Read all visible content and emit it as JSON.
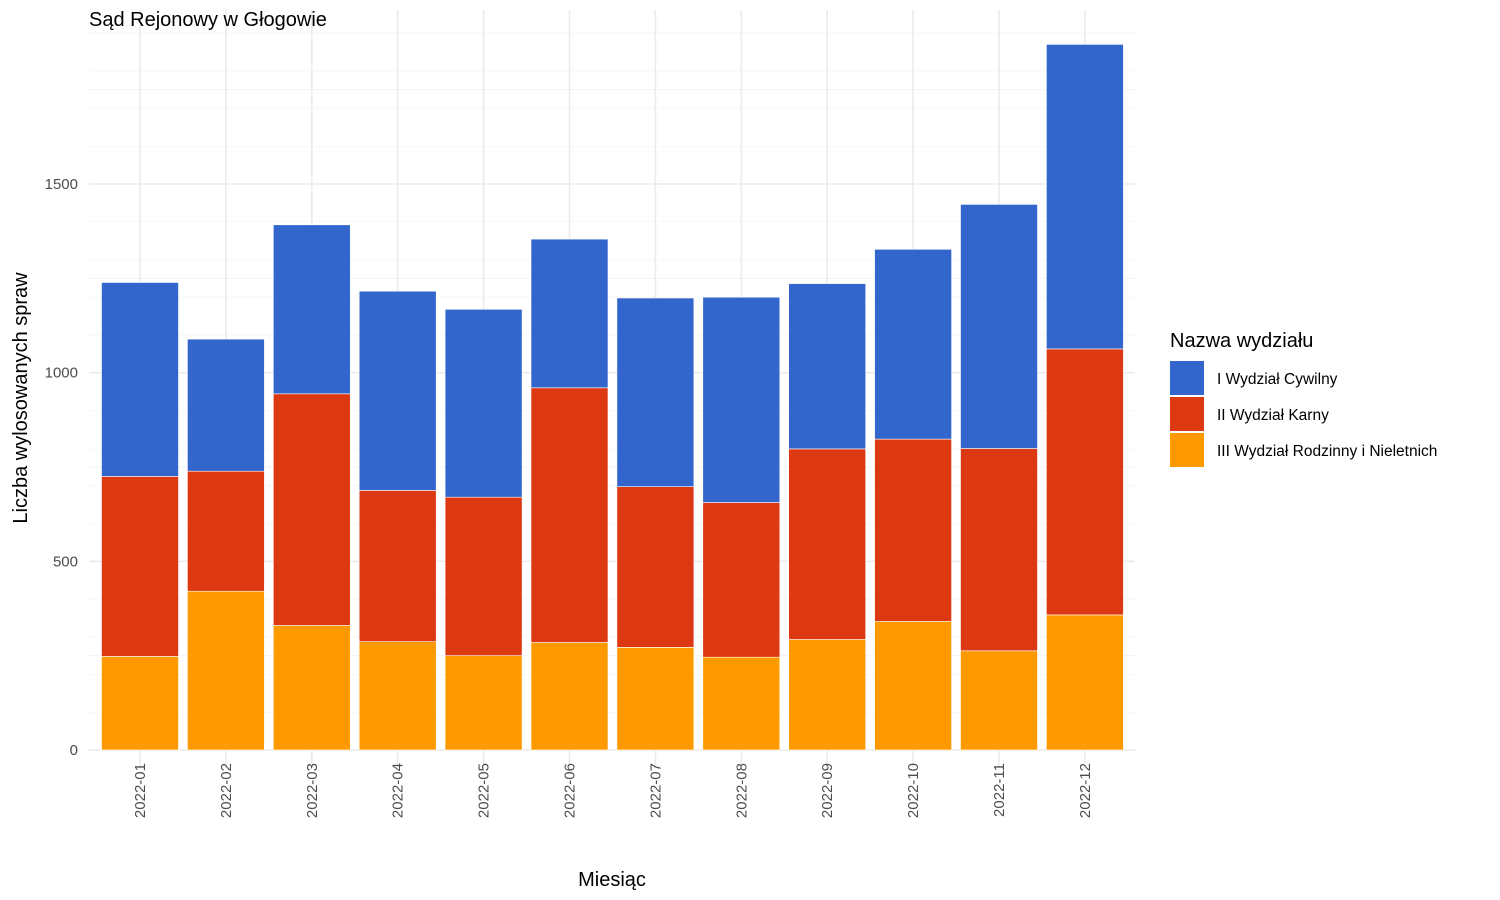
{
  "chart_data": {
    "type": "bar",
    "stacked": true,
    "title": "Sąd Rejonowy w Głogowie",
    "xlabel": "Miesiąc",
    "ylabel": "Liczba wylosowanych spraw",
    "ylim": [
      0,
      1960
    ],
    "yticks": [
      0,
      500,
      1000,
      1500
    ],
    "ytick_labels": [
      "0",
      "500",
      "1000",
      "1500"
    ],
    "grid": true,
    "legend_title": "Nazwa wydziału",
    "legend_position": "right",
    "categories": [
      "2022-01",
      "2022-02",
      "2022-03",
      "2022-04",
      "2022-05",
      "2022-06",
      "2022-07",
      "2022-08",
      "2022-09",
      "2022-10",
      "2022-11",
      "2022-12"
    ],
    "series": [
      {
        "name": "III Wydział Rodzinny i Nieletnich",
        "color": "#ff9900",
        "values": [
          248,
          421,
          330,
          287,
          250,
          285,
          272,
          246,
          293,
          341,
          263,
          358
        ]
      },
      {
        "name": "II Wydział Karny",
        "color": "#dc3912",
        "values": [
          477,
          318,
          614,
          401,
          420,
          675,
          426,
          410,
          505,
          483,
          536,
          705
        ]
      },
      {
        "name": "I Wydział Cywilny",
        "color": "#3366cc",
        "values": [
          514,
          350,
          448,
          528,
          498,
          394,
          500,
          544,
          438,
          503,
          647,
          807
        ]
      }
    ],
    "legend_order": [
      "I Wydział Cywilny",
      "II Wydział Karny",
      "III Wydział Rodzinny i Nieletnich"
    ]
  }
}
